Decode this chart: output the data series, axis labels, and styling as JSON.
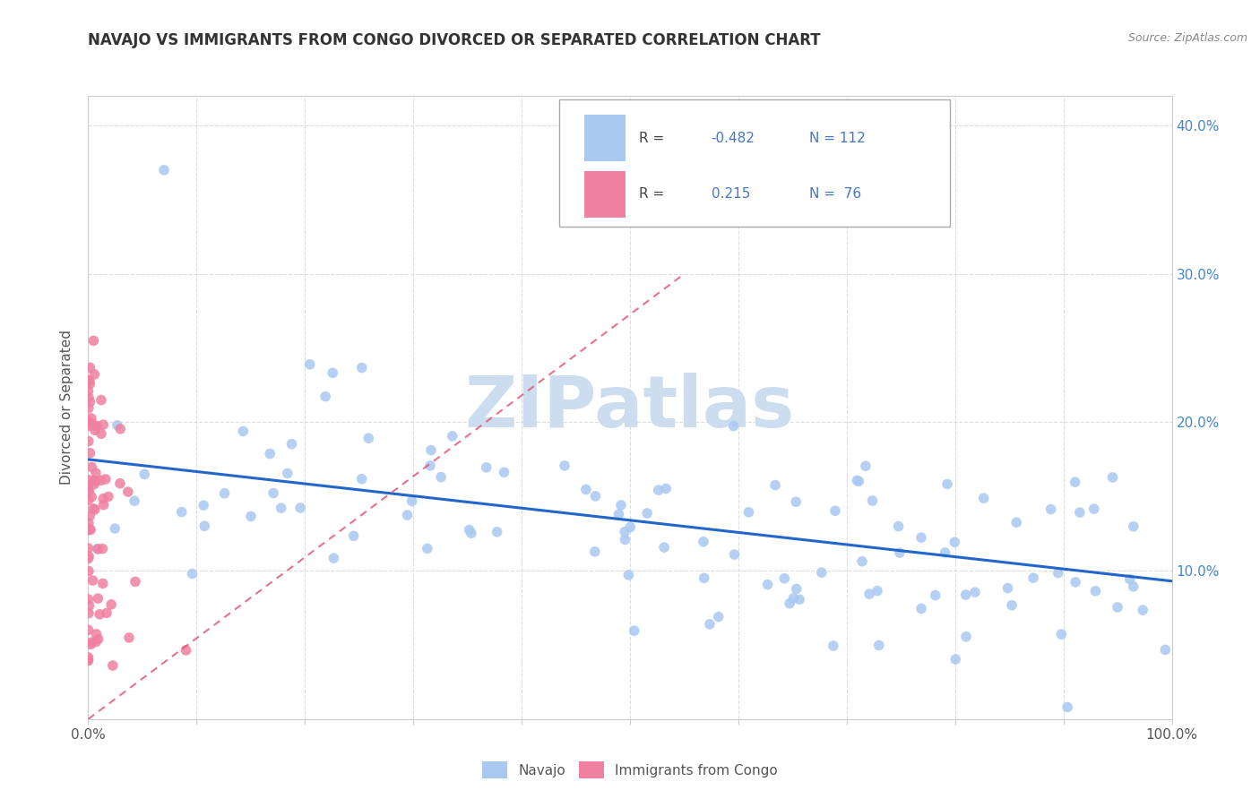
{
  "title": "NAVAJO VS IMMIGRANTS FROM CONGO DIVORCED OR SEPARATED CORRELATION CHART",
  "source": "Source: ZipAtlas.com",
  "ylabel": "Divorced or Separated",
  "xlim": [
    0,
    1.0
  ],
  "ylim": [
    0,
    0.42
  ],
  "ytick_positions": [
    0.1,
    0.2,
    0.3,
    0.4
  ],
  "ytick_labels": [
    "10.0%",
    "20.0%",
    "30.0%",
    "40.0%"
  ],
  "xtick_positions": [
    0.0,
    0.5,
    1.0
  ],
  "xtick_labels": [
    "0.0%",
    "",
    "100.0%"
  ],
  "navajo_color": "#a8c8f0",
  "congo_color": "#f080a0",
  "trend_navajo_color": "#2266cc",
  "trend_congo_color": "#e05070",
  "ytick_color": "#4488cc",
  "watermark_color": "#ccddef",
  "legend_border_color": "#aaaaaa",
  "grid_color": "#dddddd",
  "spine_color": "#cccccc",
  "title_color": "#333333",
  "source_color": "#888888",
  "ylabel_color": "#555555",
  "tick_label_color": "#555555",
  "navajo_r": "-0.482",
  "navajo_n": "112",
  "congo_r": "0.215",
  "congo_n": "76",
  "navajo_trend_x0": 0.0,
  "navajo_trend_y0": 0.175,
  "navajo_trend_x1": 1.0,
  "navajo_trend_y1": 0.093,
  "congo_trend_x0": 0.0,
  "congo_trend_y0": 0.0,
  "congo_trend_x1": 0.55,
  "congo_trend_y1": 0.3
}
